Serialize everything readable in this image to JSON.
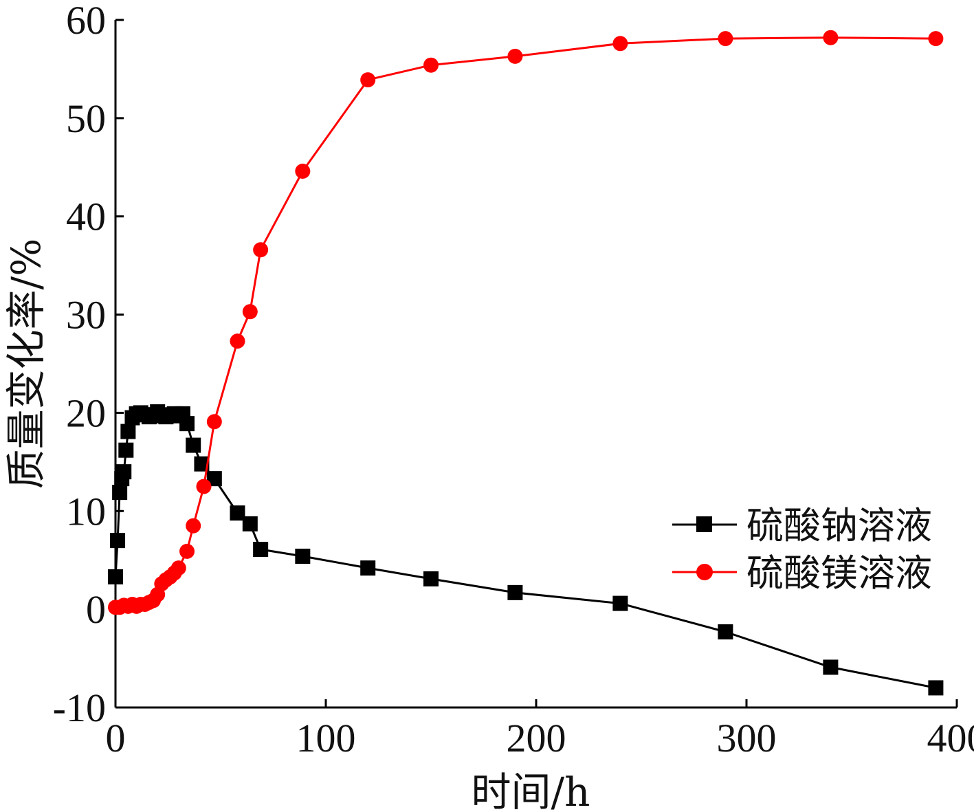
{
  "chart_data": {
    "type": "line",
    "xlabel": "时间/h",
    "ylabel": "质量变化率/%",
    "xlim": [
      0,
      400
    ],
    "ylim": [
      -10,
      60
    ],
    "xticks": [
      0,
      100,
      200,
      300,
      400
    ],
    "yticks": [
      -10,
      0,
      10,
      20,
      30,
      40,
      50,
      60
    ],
    "grid": false,
    "legend_position": "right",
    "series": [
      {
        "name": "硫酸钠溶液",
        "color": "#000000",
        "marker": "square",
        "x": [
          0,
          1,
          2,
          3,
          4,
          5,
          6,
          8,
          10,
          12,
          14,
          16,
          18,
          20,
          22,
          24,
          26,
          28,
          30,
          32,
          34,
          37,
          41,
          47,
          58,
          64,
          69,
          89,
          120,
          150,
          190,
          240,
          290,
          340,
          390
        ],
        "y": [
          3.3,
          7.0,
          11.9,
          13.3,
          14.0,
          16.2,
          18.1,
          19.5,
          19.9,
          20.0,
          19.8,
          19.6,
          19.8,
          20.1,
          19.7,
          19.6,
          19.8,
          19.9,
          19.7,
          19.9,
          18.9,
          16.7,
          14.8,
          13.3,
          9.8,
          8.7,
          6.1,
          5.4,
          4.2,
          3.1,
          1.7,
          0.6,
          -2.3,
          -5.9,
          -8.0
        ]
      },
      {
        "name": "硫酸镁溶液",
        "color": "#ff0000",
        "marker": "circle",
        "x": [
          0,
          2,
          4,
          6,
          8,
          10,
          12,
          14,
          16,
          18,
          20,
          22,
          24,
          26,
          28,
          30,
          34,
          37,
          42,
          47,
          58,
          64,
          69,
          89,
          120,
          150,
          190,
          240,
          290,
          340,
          390
        ],
        "y": [
          0.2,
          0.2,
          0.4,
          0.3,
          0.5,
          0.3,
          0.5,
          0.5,
          0.7,
          0.9,
          1.5,
          2.6,
          3.0,
          3.3,
          3.7,
          4.2,
          5.9,
          8.5,
          12.5,
          19.1,
          27.3,
          30.3,
          36.6,
          44.6,
          53.9,
          55.4,
          56.3,
          57.6,
          58.1,
          58.2,
          58.1
        ]
      }
    ]
  }
}
